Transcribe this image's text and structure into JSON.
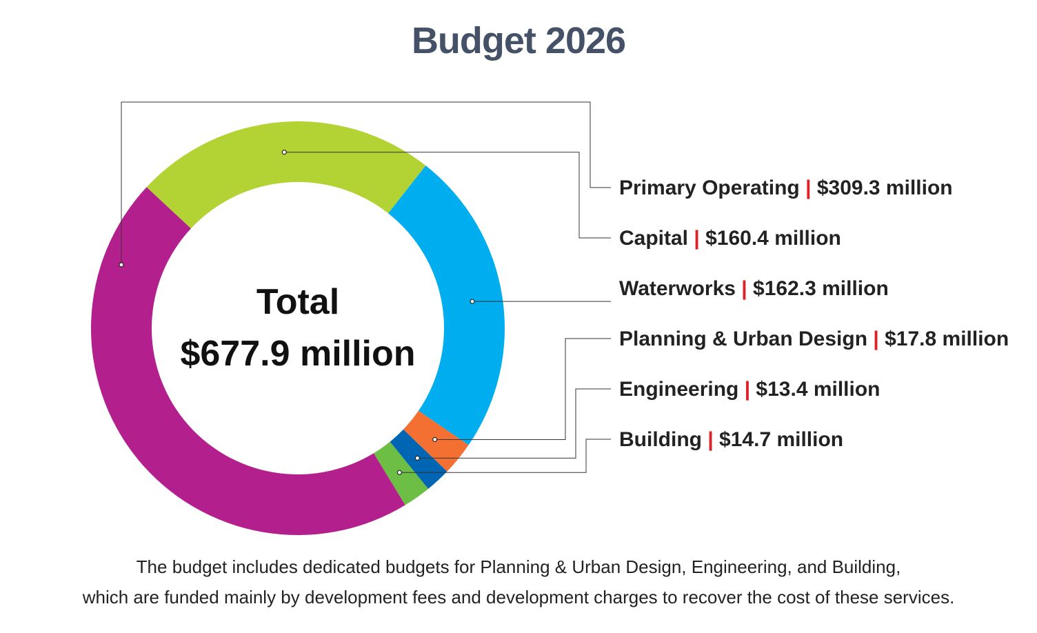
{
  "title": "Budget 2026",
  "chart_data": {
    "type": "pie",
    "variant": "donut",
    "title": "Budget 2026",
    "center_label": "Total",
    "center_value": "$677.9 million",
    "unit": "million",
    "slices": [
      {
        "name": "Primary Operating",
        "value": 309.3,
        "display": "$309.3 million",
        "color": "#b41f8e"
      },
      {
        "name": "Capital",
        "value": 160.4,
        "display": "$160.4 million",
        "color": "#b3d335"
      },
      {
        "name": "Waterworks",
        "value": 162.3,
        "display": "$162.3 million",
        "color": "#00adee"
      },
      {
        "name": "Planning & Urban Design",
        "value": 17.8,
        "display": "$17.8 million",
        "color": "#f37032"
      },
      {
        "name": "Engineering",
        "value": 13.4,
        "display": "$13.4 million",
        "color": "#0066b3"
      },
      {
        "name": "Building",
        "value": 14.7,
        "display": "$14.7 million",
        "color": "#6dbe45"
      }
    ],
    "separator": "|",
    "separator_color": "#e02027"
  },
  "caption": {
    "line1": "The budget includes dedicated budgets for Planning & Urban Design, Engineering, and Building,",
    "line2": "which are funded mainly by development fees and development charges to recover the cost of these services."
  }
}
